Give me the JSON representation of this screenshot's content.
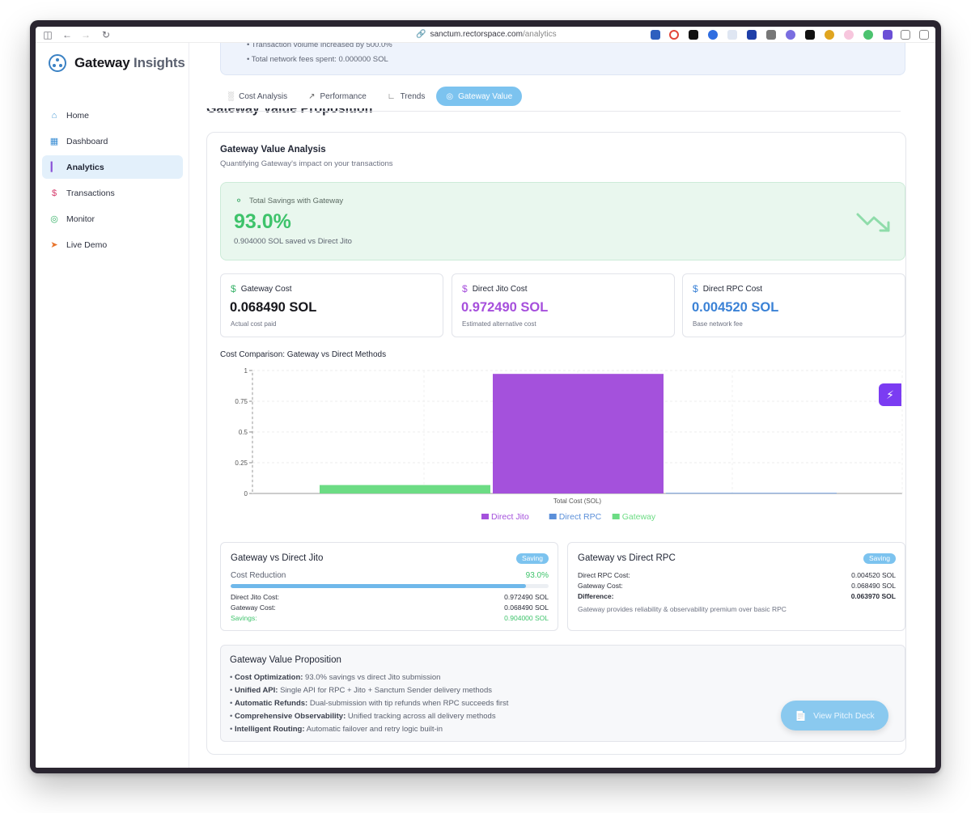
{
  "browser": {
    "url_host": "sanctum.rectorspace.com",
    "url_path": "/analytics"
  },
  "sidebar": {
    "brand_main": "Gateway",
    "brand_accent": " Insights",
    "items": [
      {
        "label": "Home",
        "icon": "home-icon",
        "color": "#4a9bd6"
      },
      {
        "label": "Dashboard",
        "icon": "grid-icon",
        "color": "#3d8fd4"
      },
      {
        "label": "Analytics",
        "icon": "bar-chart-icon",
        "color": "#8a50d6"
      },
      {
        "label": "Transactions",
        "icon": "dollar-box-icon",
        "color": "#d63a6b"
      },
      {
        "label": "Monitor",
        "icon": "radar-icon",
        "color": "#3ab36a"
      },
      {
        "label": "Live Demo",
        "icon": "rocket-icon",
        "color": "#e8742c"
      }
    ]
  },
  "top_note": {
    "line1": "• Transaction volume increased by 500.0%",
    "line2": "• Total network fees spent: 0.000000 SOL"
  },
  "tabs": [
    {
      "label": "Cost Analysis",
      "active": false
    },
    {
      "label": "Performance",
      "active": false
    },
    {
      "label": "Trends",
      "active": false
    },
    {
      "label": "Gateway Value",
      "active": true
    }
  ],
  "section_title": "Gateway Value Proposition",
  "analysis": {
    "title": "Gateway Value Analysis",
    "subtitle": "Quantifying Gateway's impact on your transactions"
  },
  "savings": {
    "label": "Total Savings with Gateway",
    "percent": "93.0%",
    "detail": "0.904000 SOL saved vs Direct Jito"
  },
  "cost_cards": [
    {
      "title": "Gateway Cost",
      "value": "0.068490 SOL",
      "caption": "Actual cost paid",
      "color": "#17171c",
      "icon_color": "#3ab36a"
    },
    {
      "title": "Direct Jito Cost",
      "value": "0.972490 SOL",
      "caption": "Estimated alternative cost",
      "color": "#a64fdc",
      "icon_color": "#a64fdc"
    },
    {
      "title": "Direct RPC Cost",
      "value": "0.004520 SOL",
      "caption": "Base network fee",
      "color": "#3b82d6",
      "icon_color": "#3b82d6"
    }
  ],
  "chart_title": "Cost Comparison: Gateway vs Direct Methods",
  "chart_data": {
    "type": "bar",
    "categories": [
      "Total Cost (SOL)"
    ],
    "xlabel": "Total Cost (SOL)",
    "ylim": [
      0,
      1
    ],
    "yticks": [
      "0",
      "0.25",
      "0.5",
      "0.75",
      "1"
    ],
    "grid": true,
    "legend_position": "bottom",
    "series": [
      {
        "name": "Gateway",
        "values": [
          0.06849
        ],
        "color": "#6cdc84"
      },
      {
        "name": "Direct Jito",
        "values": [
          0.97249
        ],
        "color": "#a451dc"
      },
      {
        "name": "Direct RPC",
        "values": [
          0.00452
        ],
        "color": "#5b8fd9"
      }
    ],
    "legend_order": [
      "Direct Jito",
      "Direct RPC",
      "Gateway"
    ]
  },
  "vs_jito": {
    "title": "Gateway vs Direct Jito",
    "badge": "Saving",
    "reduction_label": "Cost Reduction",
    "reduction_value": "93.0%",
    "reduction_fraction": 0.93,
    "rows": [
      {
        "label": "Direct Jito Cost:",
        "value": "0.972490 SOL"
      },
      {
        "label": "Gateway Cost:",
        "value": "0.068490 SOL"
      }
    ],
    "savings_label": "Savings:",
    "savings_value": "0.904000 SOL"
  },
  "vs_rpc": {
    "title": "Gateway vs Direct RPC",
    "badge": "Saving",
    "rows": [
      {
        "label": "Direct RPC Cost:",
        "value": "0.004520 SOL"
      },
      {
        "label": "Gateway Cost:",
        "value": "0.068490 SOL"
      },
      {
        "label": "Difference:",
        "value": "0.063970 SOL"
      }
    ],
    "note": "Gateway provides reliability & observability premium over basic RPC"
  },
  "value_prop": {
    "title": "Gateway Value Proposition",
    "items": [
      {
        "bold": "Cost Optimization:",
        "text": " 93.0% savings vs direct Jito submission"
      },
      {
        "bold": "Unified API:",
        "text": " Single API for RPC + Jito + Sanctum Sender delivery methods"
      },
      {
        "bold": "Automatic Refunds:",
        "text": " Dual-submission with tip refunds when RPC succeeds first"
      },
      {
        "bold": "Comprehensive Observability:",
        "text": " Unified tracking across all delivery methods"
      },
      {
        "bold": "Intelligent Routing:",
        "text": " Automatic failover and retry logic built-in"
      }
    ]
  },
  "fab_label": "View Pitch Deck"
}
